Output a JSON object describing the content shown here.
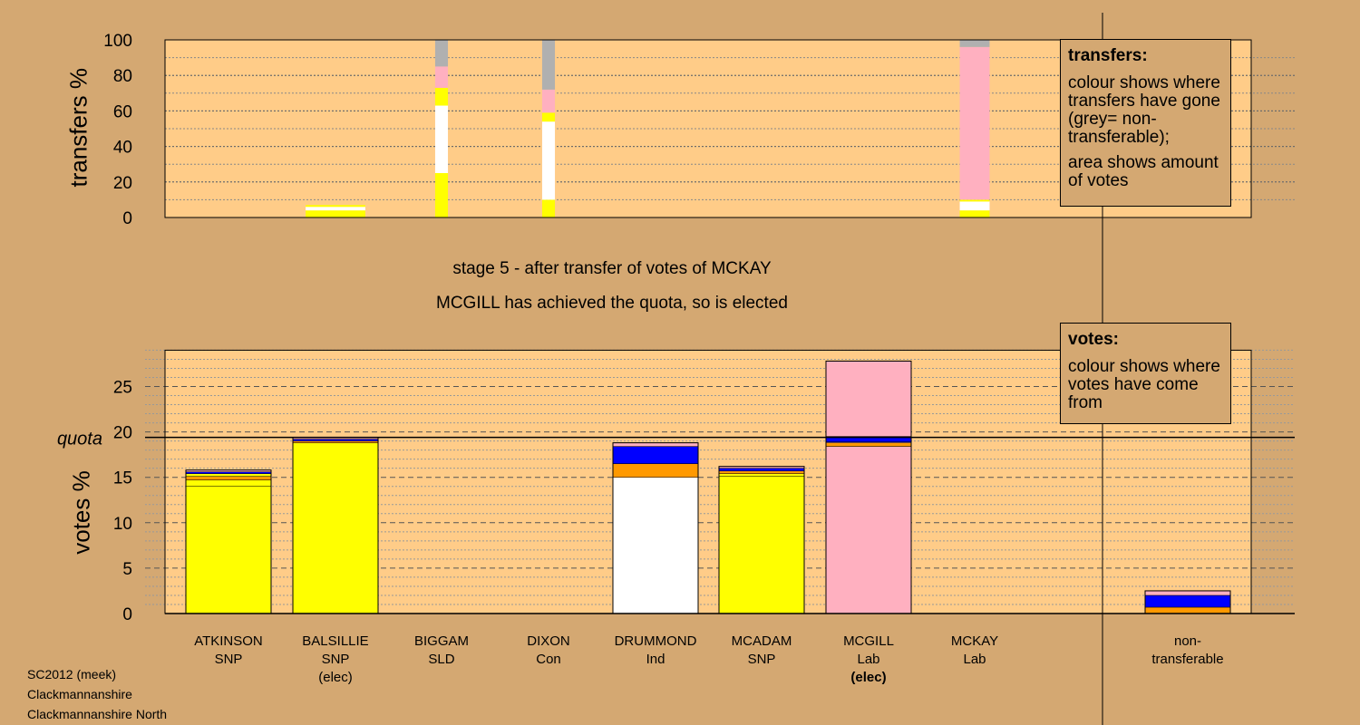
{
  "stage_title": "stage 5 - after transfer of votes of MCKAY",
  "stage_subtitle": "MCGILL has achieved the quota, so is elected",
  "transfers_legend": {
    "title": "transfers:",
    "line1": "colour shows where transfers have gone (grey= non-transferable);",
    "line2": "area shows amount of votes"
  },
  "votes_legend": {
    "title": "votes:",
    "line1": "colour shows where votes have come from"
  },
  "footer": {
    "line1": "SC2012 (meek)",
    "line2": "Clackmannanshire",
    "line3": "Clackmannanshire North"
  },
  "colors": {
    "background": "#d4a872",
    "plot_bg": "#ffcc88",
    "SNP": "#ffff00",
    "Ind": "#ffffff",
    "Lab": "#ffb0c0",
    "SLD": "#ff9900",
    "Con": "#0000ff",
    "nontransferable": "#b0b0b0"
  },
  "candidates": [
    {
      "name": "ATKINSON",
      "party": "SNP",
      "status": ""
    },
    {
      "name": "BALSILLIE",
      "party": "SNP",
      "status": "(elec)"
    },
    {
      "name": "BIGGAM",
      "party": "SLD",
      "status": ""
    },
    {
      "name": "DIXON",
      "party": "Con",
      "status": ""
    },
    {
      "name": "DRUMMOND",
      "party": "Ind",
      "status": ""
    },
    {
      "name": "MCADAM",
      "party": "SNP",
      "status": ""
    },
    {
      "name": "MCGILL",
      "party": "Lab",
      "status": "(elec)"
    },
    {
      "name": "MCKAY",
      "party": "Lab",
      "status": ""
    },
    {
      "name": "non-",
      "party": "transferable",
      "status": ""
    }
  ],
  "chart_data": [
    {
      "type": "bar",
      "name": "transfers",
      "ylabel": "transfers %",
      "ylim": [
        0,
        100
      ],
      "yticks": [
        0,
        20,
        40,
        60,
        80,
        100
      ],
      "grid": true,
      "stacked": true,
      "bars": [
        {
          "candidate": "BALSILLIE",
          "width_share": 0.7,
          "segments": [
            {
              "color": "SNP",
              "from": 0,
              "to": 4
            },
            {
              "color": "Ind",
              "from": 4,
              "to": 6
            },
            {
              "color": "SNP",
              "from": 6,
              "to": 7
            }
          ]
        },
        {
          "candidate": "BIGGAM",
          "width_share": 0.15,
          "segments": [
            {
              "color": "SNP",
              "from": 0,
              "to": 25
            },
            {
              "color": "Ind",
              "from": 25,
              "to": 63
            },
            {
              "color": "SNP",
              "from": 63,
              "to": 73
            },
            {
              "color": "Lab",
              "from": 73,
              "to": 85
            },
            {
              "color": "nontransferable",
              "from": 85,
              "to": 100
            }
          ]
        },
        {
          "candidate": "DIXON",
          "width_share": 0.15,
          "segments": [
            {
              "color": "SNP",
              "from": 0,
              "to": 10
            },
            {
              "color": "Ind",
              "from": 10,
              "to": 54
            },
            {
              "color": "SNP",
              "from": 54,
              "to": 59
            },
            {
              "color": "Lab",
              "from": 59,
              "to": 72
            },
            {
              "color": "nontransferable",
              "from": 72,
              "to": 100
            }
          ]
        },
        {
          "candidate": "MCKAY",
          "width_share": 0.35,
          "segments": [
            {
              "color": "SNP",
              "from": 0,
              "to": 4
            },
            {
              "color": "Ind",
              "from": 4,
              "to": 9
            },
            {
              "color": "SNP",
              "from": 9,
              "to": 10
            },
            {
              "color": "Lab",
              "from": 10,
              "to": 96
            },
            {
              "color": "nontransferable",
              "from": 96,
              "to": 100
            }
          ]
        }
      ]
    },
    {
      "type": "bar",
      "name": "votes",
      "ylabel": "votes %",
      "ylim": [
        0,
        29
      ],
      "yticks": [
        0,
        5,
        10,
        15,
        20,
        25
      ],
      "quota": 19.4,
      "quota_label": "quota",
      "grid": true,
      "stacked": true,
      "bars": [
        {
          "candidate": "ATKINSON",
          "segments": [
            {
              "color": "SNP",
              "value": 14.0
            },
            {
              "color": "SNP",
              "value": 0.7
            },
            {
              "color": "SLD",
              "value": 0.4
            },
            {
              "color": "SNP",
              "value": 0.3
            },
            {
              "color": "Con",
              "value": 0.2
            },
            {
              "color": "Lab",
              "value": 0.2
            }
          ]
        },
        {
          "candidate": "BALSILLIE",
          "segments": [
            {
              "color": "SNP",
              "value": 18.8
            },
            {
              "color": "SLD",
              "value": 0.2
            },
            {
              "color": "Con",
              "value": 0.2
            },
            {
              "color": "Lab",
              "value": 0.2
            }
          ]
        },
        {
          "candidate": "BIGGAM",
          "segments": []
        },
        {
          "candidate": "DIXON",
          "segments": []
        },
        {
          "candidate": "DRUMMOND",
          "segments": [
            {
              "color": "Ind",
              "value": 15.0
            },
            {
              "color": "SLD",
              "value": 1.5
            },
            {
              "color": "Con",
              "value": 1.9
            },
            {
              "color": "Lab",
              "value": 0.4
            }
          ]
        },
        {
          "candidate": "MCADAM",
          "segments": [
            {
              "color": "SNP",
              "value": 15.1
            },
            {
              "color": "SNP",
              "value": 0.3
            },
            {
              "color": "SLD",
              "value": 0.3
            },
            {
              "color": "Con",
              "value": 0.3
            },
            {
              "color": "Lab",
              "value": 0.2
            }
          ]
        },
        {
          "candidate": "MCGILL",
          "segments": [
            {
              "color": "Lab",
              "value": 18.4
            },
            {
              "color": "SLD",
              "value": 0.4
            },
            {
              "color": "Lab",
              "value": 0.1
            },
            {
              "color": "Con",
              "value": 0.6
            },
            {
              "color": "Lab",
              "value": 8.3
            }
          ]
        },
        {
          "candidate": "MCKAY",
          "segments": []
        },
        {
          "candidate": "non-transferable",
          "segments": [
            {
              "color": "SLD",
              "value": 0.7
            },
            {
              "color": "Con",
              "value": 1.3
            },
            {
              "color": "Lab",
              "value": 0.5
            }
          ]
        }
      ]
    }
  ]
}
